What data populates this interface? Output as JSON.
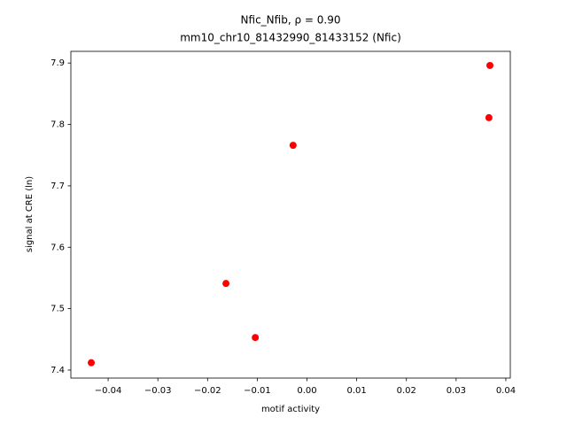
{
  "chart_data": {
    "type": "scatter",
    "title": "Nfic_Nfib, ρ = 0.90",
    "subtitle": "mm10_chr10_81432990_81433152 (Nfic)",
    "xlabel": "motif activity",
    "ylabel": "signal at CRE (ln)",
    "color": "#ff0000",
    "x": [
      0.0368,
      0.0366,
      -0.0028,
      -0.0163,
      -0.0104,
      -0.0434
    ],
    "values": [
      7.896,
      7.811,
      7.766,
      7.541,
      7.453,
      7.412
    ],
    "xlim": [
      -0.0475,
      0.0409
    ],
    "ylim": [
      7.387,
      7.919
    ],
    "xticks": [
      {
        "value": -0.04,
        "label": "−0.04"
      },
      {
        "value": -0.03,
        "label": "−0.03"
      },
      {
        "value": -0.02,
        "label": "−0.02"
      },
      {
        "value": -0.01,
        "label": "−0.01"
      },
      {
        "value": 0,
        "label": "0.00"
      },
      {
        "value": 0.01,
        "label": "0.01"
      },
      {
        "value": 0.02,
        "label": "0.02"
      },
      {
        "value": 0.03,
        "label": "0.03"
      },
      {
        "value": 0.04,
        "label": "0.04"
      }
    ],
    "yticks": [
      7.4,
      7.5,
      7.6,
      7.7,
      7.8,
      7.9
    ],
    "grid": false
  }
}
